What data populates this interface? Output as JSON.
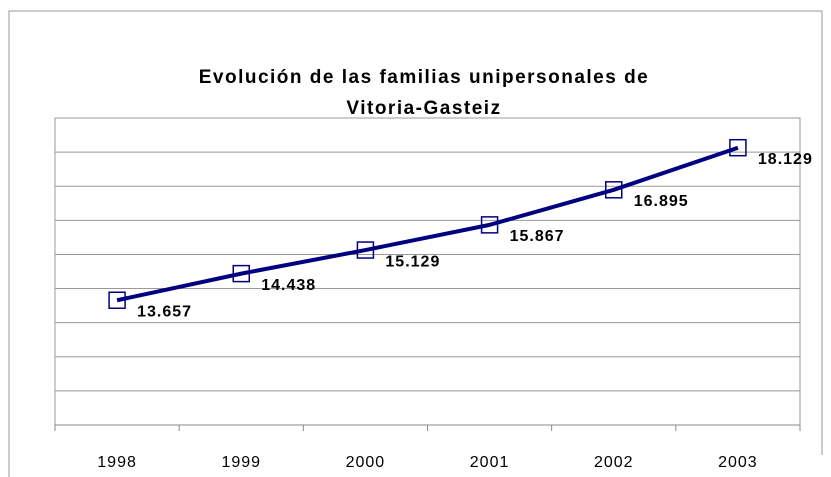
{
  "chart_data": {
    "type": "line",
    "title": [
      "Evolución de las familias unipersonales de",
      "Vitoria-Gasteiz"
    ],
    "categories": [
      "1998",
      "1999",
      "2000",
      "2001",
      "2002",
      "2003"
    ],
    "series": [
      {
        "color": "#000080",
        "values": [
          13657,
          14438,
          15129,
          15867,
          16895,
          18129
        ],
        "value_labels": [
          "13.657",
          "14.438",
          "15.129",
          "15.867",
          "16.895",
          "18.129"
        ]
      }
    ],
    "ylim": [
      10000,
      19000
    ],
    "yticks": [
      10000,
      11000,
      12000,
      13000,
      14000,
      15000,
      16000,
      17000,
      18000,
      19000
    ],
    "grid": true
  }
}
